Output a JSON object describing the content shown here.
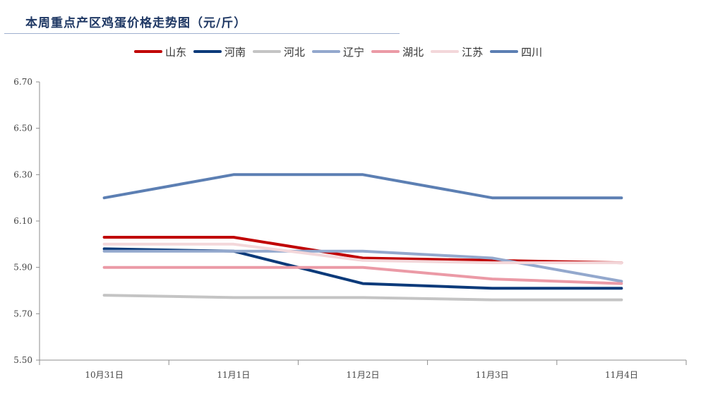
{
  "chart_data": {
    "type": "line",
    "title": "本周重点产区鸡蛋价格走势图（元/斤）",
    "categories": [
      "10月31日",
      "11月1日",
      "11月2日",
      "11月3日",
      "11月4日"
    ],
    "ylim": [
      5.5,
      6.7
    ],
    "yticks": [
      "5.50",
      "5.70",
      "5.90",
      "6.10",
      "6.30",
      "6.50",
      "6.70"
    ],
    "grid": false,
    "legend_position": "top",
    "series": [
      {
        "name": "山东",
        "color": "#c00000",
        "values": [
          6.03,
          6.03,
          5.94,
          5.93,
          5.92
        ]
      },
      {
        "name": "河南",
        "color": "#0b3a7a",
        "values": [
          5.98,
          5.97,
          5.83,
          5.81,
          5.81
        ]
      },
      {
        "name": "河北",
        "color": "#c4c4c4",
        "values": [
          5.78,
          5.77,
          5.77,
          5.76,
          5.76
        ]
      },
      {
        "name": "辽宁",
        "color": "#93a8cd",
        "values": [
          5.97,
          5.97,
          5.97,
          5.94,
          5.84
        ]
      },
      {
        "name": "湖北",
        "color": "#eb9aa6",
        "values": [
          5.9,
          5.9,
          5.9,
          5.85,
          5.83
        ]
      },
      {
        "name": "江苏",
        "color": "#f3d7da",
        "values": [
          6.0,
          6.0,
          5.93,
          5.92,
          5.92
        ]
      },
      {
        "name": "四川",
        "color": "#5c7fb3",
        "values": [
          6.2,
          6.3,
          6.3,
          6.2,
          6.2
        ]
      }
    ]
  }
}
